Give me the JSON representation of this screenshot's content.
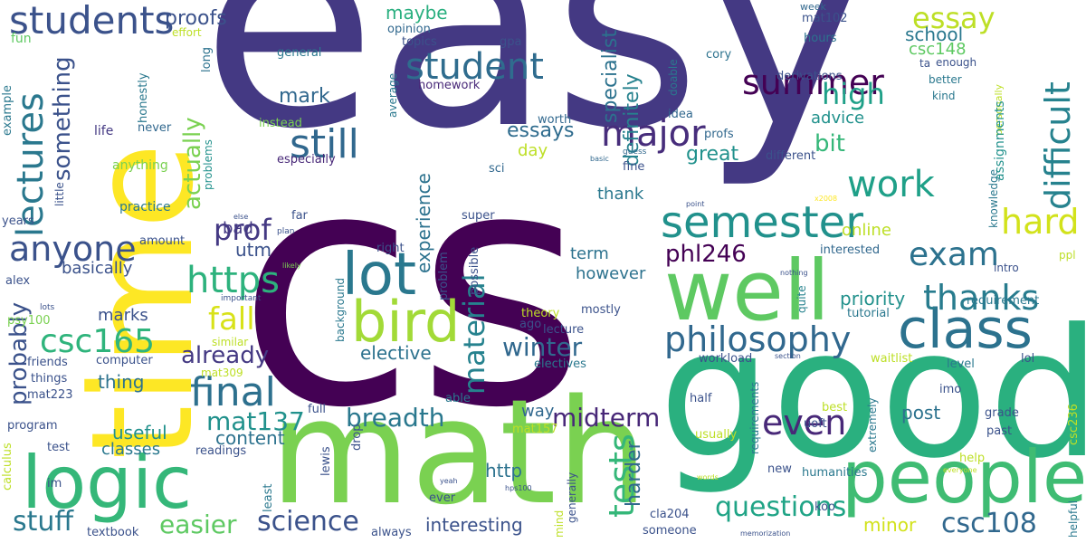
{
  "colors": {
    "background": "#ffffff",
    "c1": "#440154",
    "c2": "#443983",
    "c3": "#31688e",
    "c4": "#21918c",
    "c5": "#35b779",
    "c6": "#7ad151",
    "c7": "#fde725"
  },
  "words": {
    "easy": "easy",
    "cs": "cs",
    "time": "time",
    "good": "good",
    "math": "math",
    "well": "well",
    "logic": "logic",
    "people": "people",
    "class": "class",
    "bird": "bird",
    "lot": "lot",
    "semester": "semester",
    "students": "students",
    "student": "student",
    "lectures": "lectures",
    "anyone": "anyone",
    "still": "still",
    "summer": "summer",
    "major": "major",
    "essay": "essay",
    "exam": "exam",
    "difficult": "difficult",
    "hard": "hard",
    "thanks": "thanks",
    "philosophy": "philosophy",
    "final": "final",
    "csc165": "csc165",
    "https": "https",
    "fall": "fall",
    "prof": "prof",
    "work": "work",
    "high": "high",
    "material": "material",
    "even": "even",
    "tests": "tests",
    "questions": "questions",
    "science": "science",
    "stuff": "stuff",
    "easier": "easier",
    "breadth": "breadth",
    "midterm": "midterm",
    "mat137": "mat137",
    "winter": "winter",
    "csc108": "csc108",
    "phl246": "phl246",
    "already": "already",
    "probably": "probably",
    "actually": "actually",
    "something": "something",
    "proofs": "proofs",
    "maybe": "maybe",
    "school": "school",
    "csc148": "csc148",
    "mark": "mark",
    "experience": "experience",
    "specialist": "specialist",
    "definitely": "definitely",
    "essays": "essays",
    "great": "great",
    "bit": "bit",
    "advice": "advice",
    "priority": "priority",
    "elective": "elective",
    "content": "content",
    "useful": "useful",
    "classes": "classes",
    "interesting": "interesting",
    "http": "http",
    "harder": "harder",
    "minor": "minor",
    "post": "post",
    "thing": "thing",
    "marks": "marks",
    "basically": "basically",
    "utm": "utm",
    "bad": "bad",
    "online": "online",
    "thank": "thank",
    "however": "however",
    "term": "term",
    "day": "day",
    "way": "way",
    "fun": "fun",
    "effort": "effort",
    "long": "long",
    "opinion": "opinion",
    "topics": "topics",
    "gpa": "gpa",
    "general": "general",
    "average": "average",
    "homework": "homework",
    "honestly": "honestly",
    "example": "example",
    "life": "life",
    "never": "never",
    "problems": "problems",
    "anything": "anything",
    "instead": "instead",
    "especially": "especially",
    "worth": "worth",
    "idea": "idea",
    "profs": "profs",
    "sci": "sci",
    "week": "week",
    "mat102": "mat102",
    "hours": "hours",
    "cory": "cory",
    "derivations": "derivations",
    "doable": "doable",
    "better": "better",
    "kind": "kind",
    "ta": "ta",
    "enough": "enough",
    "personally": "personally",
    "fine": "fine",
    "guess": "guess",
    "basic": "basic",
    "different": "different",
    "x2008": "x2008",
    "point": "point",
    "knowledge": "knowledge",
    "assignments": "assignments",
    "practice": "practice",
    "amount": "amount",
    "little": "little",
    "years": "years",
    "far": "far",
    "super": "super",
    "plan": "plan",
    "else": "else",
    "alex": "alex",
    "important": "important",
    "likely": "likely",
    "right": "right",
    "interested": "interested",
    "intro": "intro",
    "ppl": "ppl",
    "requirement": "requirement",
    "nothing": "nothing",
    "quite": "quite",
    "tutorial": "tutorial",
    "theory": "theory",
    "ago": "ago",
    "lecture": "lecture",
    "mostly": "mostly",
    "possible": "possible",
    "problem": "problem",
    "background": "background",
    "lots": "lots",
    "psy100": "psy100",
    "similar": "similar",
    "friends": "friends",
    "computer": "computer",
    "mat309": "mat309",
    "things": "things",
    "mat223": "mat223",
    "electives": "electives",
    "workload": "workload",
    "section": "section",
    "waitlist": "waitlist",
    "level": "level",
    "lol": "lol",
    "imo": "imo",
    "half": "half",
    "best": "best",
    "requirements": "requirements",
    "extremely": "extremely",
    "program": "program",
    "full": "full",
    "able": "able",
    "mat157": "mat157",
    "drop": "drop",
    "test": "test",
    "readings": "readings",
    "usually": "usually",
    "uoft": "uoft",
    "grade": "grade",
    "past": "past",
    "csc236": "csc236",
    "calculus": "calculus",
    "im": "im",
    "lewis": "lewis",
    "least": "least",
    "yeah": "yeah",
    "hps100": "hps100",
    "words": "words",
    "everyone": "everyone",
    "help": "help",
    "new": "new",
    "humanities": "humanities",
    "ever": "ever",
    "generally": "generally",
    "mind": "mind",
    "cla204": "cla204",
    "koo": "koo",
    "helpful": "helpful",
    "textbook": "textbook",
    "always": "always",
    "someone": "someone",
    "memorization": "memorization"
  }
}
